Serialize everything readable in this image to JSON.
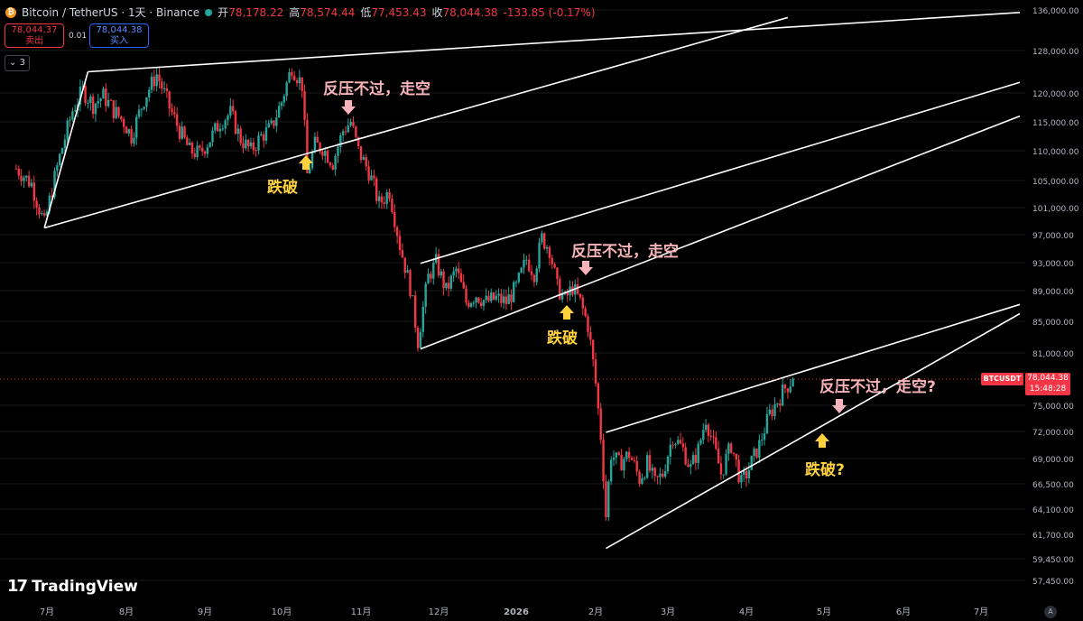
{
  "header": {
    "symbol": "Bitcoin / TetherUS · 1天 · Binance",
    "open_label": "开",
    "open": "78,178.22",
    "high_label": "高",
    "high": "78,574.44",
    "low_label": "低",
    "low": "77,453.43",
    "close_label": "收",
    "close": "78,044.38",
    "change": "-133.85 (-0.17%)"
  },
  "trade": {
    "sell_price": "78,044.37",
    "sell_label": "卖出",
    "spread": "0.01",
    "buy_price": "78,044.38",
    "buy_label": "买入"
  },
  "indicator_count": "3",
  "last_price": {
    "ticker": "BTCUSDT",
    "price": "78,044.38",
    "countdown": "15:48:28"
  },
  "logo_text": "TradingView",
  "colors": {
    "up": "#26a69a",
    "down": "#f23645",
    "line": "#ffffff",
    "pink_text": "#f7b3b9",
    "yellow_text": "#ffd23c",
    "grid": "#1a1a1a"
  },
  "annotations": [
    {
      "text": "反压不过，走空",
      "style": "pink"
    },
    {
      "text": "跌破",
      "style": "yellow"
    },
    {
      "text": "反压不过，走空",
      "style": "pink"
    },
    {
      "text": "跌破",
      "style": "yellow"
    },
    {
      "text": "反压不过，走空?",
      "style": "pink"
    },
    {
      "text": "跌破?",
      "style": "yellow"
    }
  ],
  "chart_data": {
    "type": "candlestick",
    "y_ticks": [
      136000,
      128000,
      120000,
      115000,
      110000,
      105000,
      101000,
      97000,
      93000,
      89000,
      85000,
      81000,
      75000,
      72000,
      69000,
      66500,
      64100,
      61700,
      59450,
      57450
    ],
    "y_tick_labels": [
      "136,000.00",
      "128,000.00",
      "120,000.00",
      "115,000.00",
      "110,000.00",
      "105,000.00",
      "101,000.00",
      "97,000.00",
      "93,000.00",
      "89,000.00",
      "85,000.00",
      "81,000.00",
      "75,000.00",
      "72,000.00",
      "69,000.00",
      "66,500.00",
      "64,100.00",
      "61,700.00",
      "59,450.00",
      "57,450.00"
    ],
    "x_tick_labels": [
      "7月",
      "8月",
      "9月",
      "10月",
      "11月",
      "12月",
      "2026",
      "2月",
      "3月",
      "4月",
      "5月",
      "6月",
      "7月"
    ],
    "x_tick_days": [
      0,
      31,
      62,
      92,
      123,
      153,
      184,
      215,
      243,
      274,
      304,
      335,
      365
    ],
    "start_date": "2025-07-01",
    "ohlc_keypoints": [
      [
        -12,
        107000
      ],
      [
        -6,
        104500
      ],
      [
        -1,
        98500
      ],
      [
        5,
        109000
      ],
      [
        10,
        117000
      ],
      [
        14,
        120500
      ],
      [
        18,
        118000
      ],
      [
        22,
        119500
      ],
      [
        26,
        117000
      ],
      [
        30,
        115000
      ],
      [
        33,
        112500
      ],
      [
        38,
        119000
      ],
      [
        43,
        123500
      ],
      [
        48,
        117500
      ],
      [
        52,
        113500
      ],
      [
        56,
        110000
      ],
      [
        60,
        109500
      ],
      [
        64,
        112000
      ],
      [
        68,
        115000
      ],
      [
        72,
        116500
      ],
      [
        76,
        112000
      ],
      [
        80,
        110000
      ],
      [
        84,
        112500
      ],
      [
        88,
        114000
      ],
      [
        92,
        118500
      ],
      [
        96,
        125000
      ],
      [
        100,
        121500
      ],
      [
        102,
        106000
      ],
      [
        105,
        111000
      ],
      [
        108,
        110500
      ],
      [
        112,
        108000
      ],
      [
        116,
        113500
      ],
      [
        119,
        115000
      ],
      [
        122,
        110000
      ],
      [
        126,
        106500
      ],
      [
        130,
        101500
      ],
      [
        134,
        103500
      ],
      [
        138,
        95500
      ],
      [
        142,
        89500
      ],
      [
        145,
        82500
      ],
      [
        149,
        91000
      ],
      [
        152,
        93000
      ],
      [
        156,
        89000
      ],
      [
        160,
        92000
      ],
      [
        164,
        87500
      ],
      [
        168,
        88500
      ],
      [
        172,
        87500
      ],
      [
        176,
        88000
      ],
      [
        180,
        87500
      ],
      [
        184,
        89500
      ],
      [
        188,
        93500
      ],
      [
        191,
        91500
      ],
      [
        194,
        96500
      ],
      [
        197,
        95000
      ],
      [
        200,
        89500
      ],
      [
        203,
        87800
      ],
      [
        206,
        89500
      ],
      [
        209,
        87500
      ],
      [
        212,
        84500
      ],
      [
        215,
        77500
      ],
      [
        217,
        71500
      ],
      [
        219,
        63500
      ],
      [
        221,
        69500
      ],
      [
        224,
        68500
      ],
      [
        228,
        69500
      ],
      [
        232,
        67000
      ],
      [
        235,
        68500
      ],
      [
        238,
        66500
      ],
      [
        241,
        67500
      ],
      [
        245,
        71500
      ],
      [
        249,
        70000
      ],
      [
        252,
        68000
      ],
      [
        255,
        70000
      ],
      [
        258,
        73500
      ],
      [
        261,
        70500
      ],
      [
        264,
        67500
      ],
      [
        268,
        70500
      ],
      [
        272,
        66500
      ],
      [
        275,
        68000
      ],
      [
        279,
        70500
      ],
      [
        283,
        74000
      ],
      [
        286,
        75500
      ],
      [
        289,
        77000
      ],
      [
        292,
        78044
      ]
    ],
    "trendlines": [
      {
        "points": [
          [
            16,
            124000
          ],
          [
            -1,
            98000
          ]
        ],
        "role": "support"
      },
      {
        "points": [
          [
            16,
            124000
          ],
          [
            380,
            136500
          ]
        ],
        "role": "resistance"
      },
      {
        "points": [
          [
            -1,
            98000
          ],
          [
            290,
            137500
          ]
        ],
        "role": "support"
      },
      {
        "points": [
          [
            146,
            92900
          ],
          [
            380,
            122000
          ]
        ],
        "role": "resistance"
      },
      {
        "points": [
          [
            146,
            81500
          ],
          [
            380,
            116000
          ]
        ],
        "role": "support"
      },
      {
        "points": [
          [
            219,
            71900
          ],
          [
            380,
            87200
          ]
        ],
        "role": "resistance"
      },
      {
        "points": [
          [
            219,
            60400
          ],
          [
            380,
            86000
          ]
        ],
        "role": "support"
      }
    ]
  }
}
